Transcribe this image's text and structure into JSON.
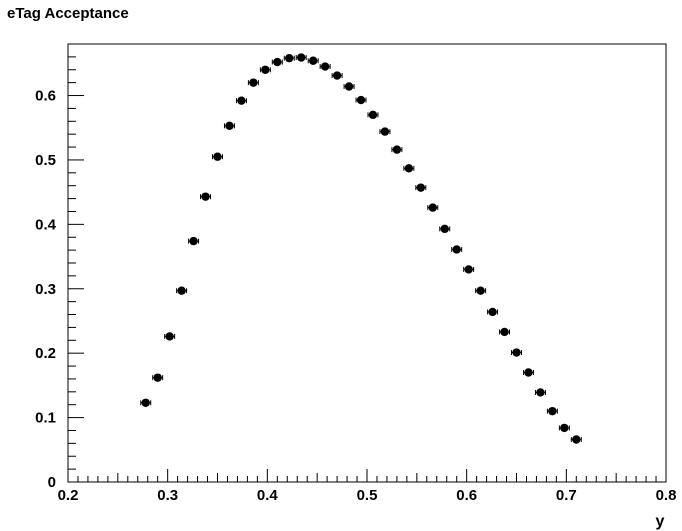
{
  "chart_data": {
    "type": "scatter",
    "title": "eTag Acceptance",
    "xlabel": "y",
    "ylabel": "",
    "xlim": [
      0.2,
      0.8
    ],
    "ylim": [
      0,
      0.68
    ],
    "x_ticks": [
      "0.2",
      "0.3",
      "0.4",
      "0.5",
      "0.6",
      "0.7",
      "0.8"
    ],
    "y_ticks": [
      "0",
      "0.1",
      "0.2",
      "0.3",
      "0.4",
      "0.5",
      "0.6"
    ],
    "grid": false,
    "legend": "none",
    "marker_color": "#000000",
    "x_error": 0.005,
    "series": [
      {
        "x": [
          0.278,
          0.29,
          0.302,
          0.314,
          0.326,
          0.338,
          0.35,
          0.362,
          0.374,
          0.386,
          0.398,
          0.41,
          0.422,
          0.434,
          0.446,
          0.458,
          0.47,
          0.482,
          0.494,
          0.506,
          0.518,
          0.53,
          0.542,
          0.554,
          0.566,
          0.578,
          0.59,
          0.602,
          0.614,
          0.626,
          0.638,
          0.65,
          0.662,
          0.674,
          0.686,
          0.698,
          0.71
        ],
        "y": [
          0.123,
          0.162,
          0.226,
          0.297,
          0.374,
          0.443,
          0.505,
          0.553,
          0.592,
          0.62,
          0.64,
          0.652,
          0.658,
          0.659,
          0.654,
          0.645,
          0.631,
          0.614,
          0.593,
          0.57,
          0.544,
          0.516,
          0.487,
          0.457,
          0.426,
          0.393,
          0.361,
          0.33,
          0.297,
          0.264,
          0.233,
          0.201,
          0.17,
          0.139,
          0.11,
          0.084,
          0.066
        ]
      }
    ]
  }
}
